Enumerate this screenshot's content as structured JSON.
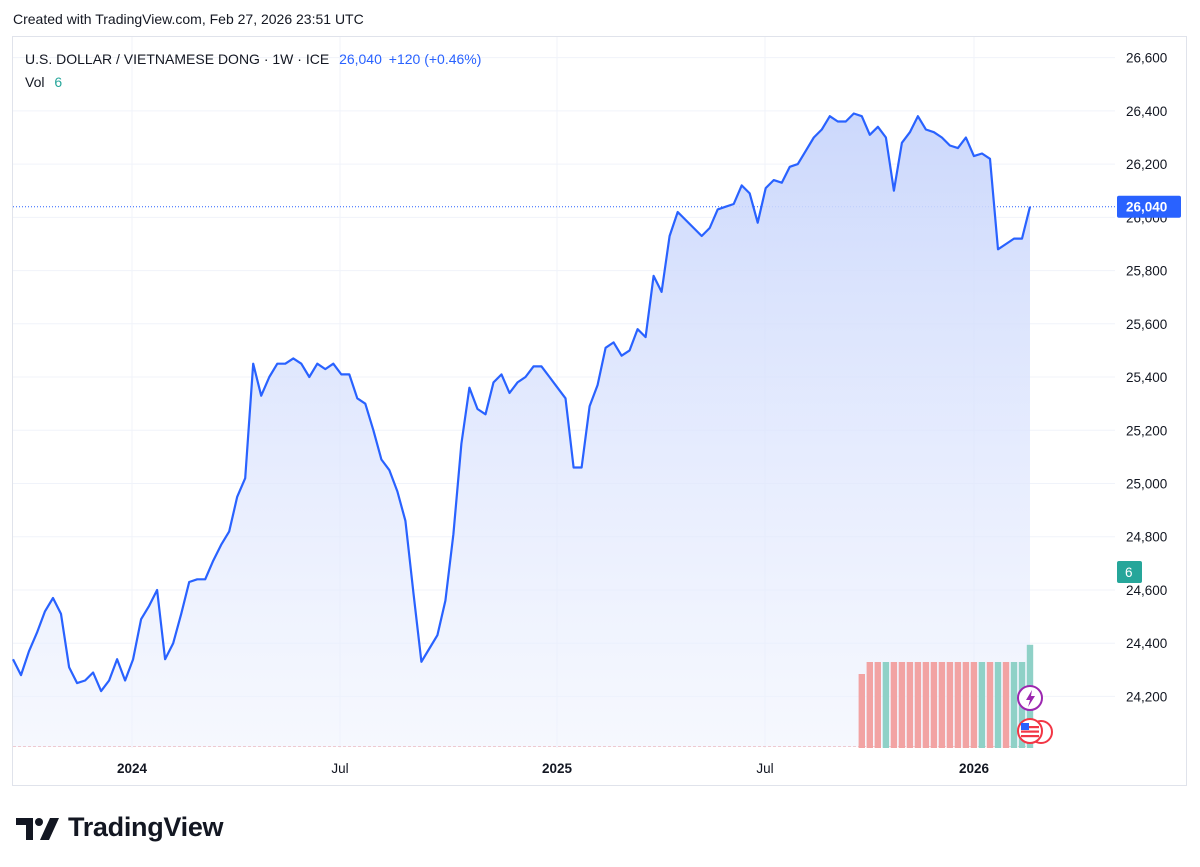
{
  "header": {
    "created_text": "Created with TradingView.com, Feb 27, 2026 23:51 UTC"
  },
  "legend": {
    "symbol": "U.S. DOLLAR / VIETNAMESE DONG · 1W · ICE",
    "last": "26,040",
    "change": "+120 (+0.46%)",
    "vol_label": "Vol",
    "vol_value": "6"
  },
  "branding": {
    "logo_text": "TradingView"
  },
  "colors": {
    "line": "#2962ff",
    "area_top": "#cdd8fc",
    "vol_up": "#8fd1c7",
    "vol_down": "#f2a3a3",
    "vol_badge": "#26a69a",
    "price_badge": "#2962ff"
  },
  "chart_data": {
    "type": "area",
    "title": "U.S. DOLLAR / VIETNAMESE DONG",
    "x_ticks": [
      "2024",
      "Jul",
      "2025",
      "Jul",
      "2026"
    ],
    "y_ticks": [
      "26,600",
      "26,400",
      "26,200",
      "26,000",
      "25,800",
      "25,600",
      "25,400",
      "25,200",
      "25,000",
      "24,800",
      "24,600",
      "24,400",
      "24,200"
    ],
    "ylim": [
      24010,
      26640
    ],
    "last_price_label": "26,040",
    "volume_badge": "6",
    "series": [
      {
        "name": "USD/VND",
        "values": [
          24340,
          24280,
          24370,
          24440,
          24520,
          24570,
          24510,
          24310,
          24250,
          24260,
          24290,
          24220,
          24260,
          24340,
          24260,
          24340,
          24490,
          24540,
          24600,
          24340,
          24400,
          24510,
          24630,
          24640,
          24640,
          24710,
          24770,
          24820,
          24950,
          25020,
          25450,
          25330,
          25400,
          25450,
          25450,
          25470,
          25450,
          25400,
          25450,
          25430,
          25450,
          25410,
          25410,
          25320,
          25300,
          25200,
          25090,
          25050,
          24970,
          24860,
          24590,
          24330,
          24380,
          24430,
          24560,
          24810,
          25150,
          25360,
          25280,
          25260,
          25380,
          25410,
          25340,
          25380,
          25400,
          25440,
          25440,
          25400,
          25360,
          25320,
          25060,
          25060,
          25290,
          25370,
          25510,
          25530,
          25480,
          25500,
          25580,
          25550,
          25780,
          25720,
          25930,
          26020,
          25990,
          25960,
          25930,
          25960,
          26030,
          26040,
          26050,
          26120,
          26090,
          25980,
          26110,
          26140,
          26130,
          26190,
          26200,
          26250,
          26300,
          26330,
          26380,
          26360,
          26360,
          26390,
          26380,
          26310,
          26340,
          26300,
          26100,
          26280,
          26320,
          26380,
          26330,
          26320,
          26300,
          26270,
          26260,
          26300,
          26230,
          26240,
          26220,
          25880,
          25900,
          25920,
          25920,
          26040
        ]
      }
    ],
    "volume": {
      "start_index": 106,
      "values": [
        4.3,
        5,
        5,
        5,
        5,
        5,
        5,
        5,
        5,
        5,
        5,
        5,
        5,
        5,
        5,
        5,
        5,
        5,
        5,
        5,
        5,
        6
      ],
      "up": [
        false,
        false,
        false,
        true,
        false,
        false,
        false,
        false,
        false,
        false,
        false,
        false,
        false,
        false,
        false,
        true,
        false,
        true,
        false,
        true,
        true,
        true
      ]
    }
  }
}
